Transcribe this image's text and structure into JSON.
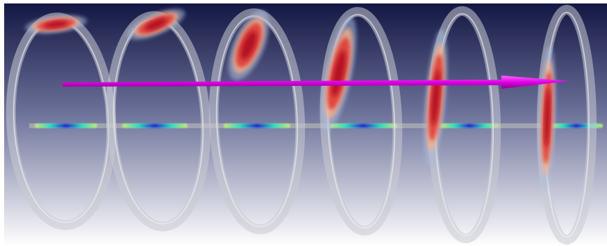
{
  "scene": {
    "background_top": "#101440",
    "background_bottom": "#ffffff",
    "ring_color": "#c9cbd2",
    "hotspot_colors": [
      "#b01020",
      "#e03a35",
      "#f7b08a",
      "#a9bde0"
    ],
    "arrow_color": "#e000e6",
    "axis_color": "#a8aab0",
    "axis_field_colors": [
      "#1c2bd0",
      "#22e0c0",
      "#ccec70"
    ],
    "ring_count": 6
  }
}
